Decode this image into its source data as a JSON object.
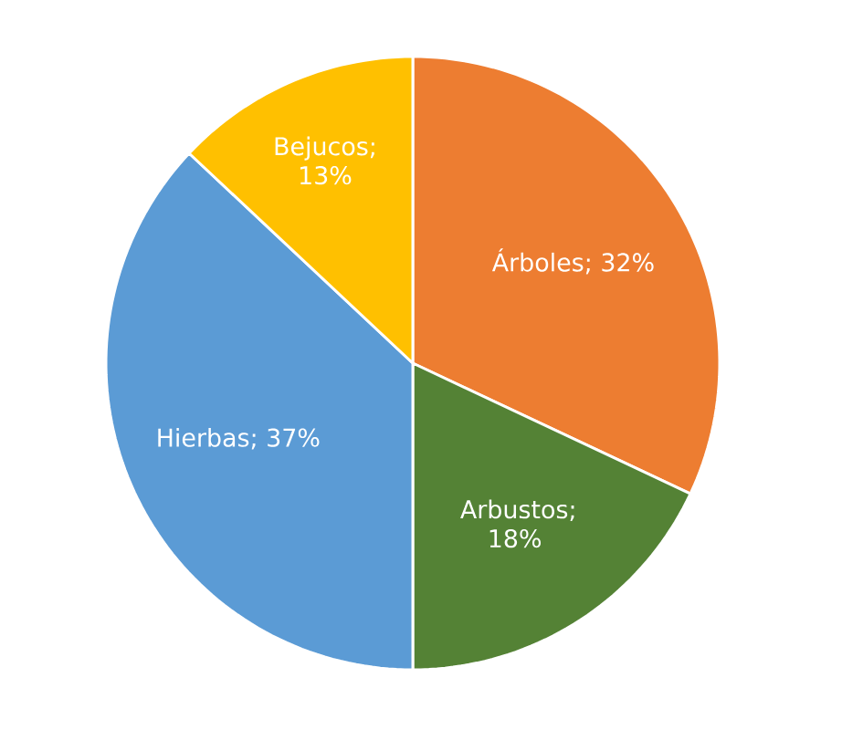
{
  "chart_data": {
    "type": "pie",
    "categories": [
      "Árboles",
      "Arbustos",
      "Hierbas",
      "Bejucos"
    ],
    "values": [
      32,
      18,
      37,
      13
    ],
    "colors": [
      "#ed7d31",
      "#548235",
      "#5b9bd5",
      "#ffc000"
    ],
    "value_labels": [
      "; 32%",
      "; 18%",
      "; 37%",
      "; 13%"
    ]
  }
}
